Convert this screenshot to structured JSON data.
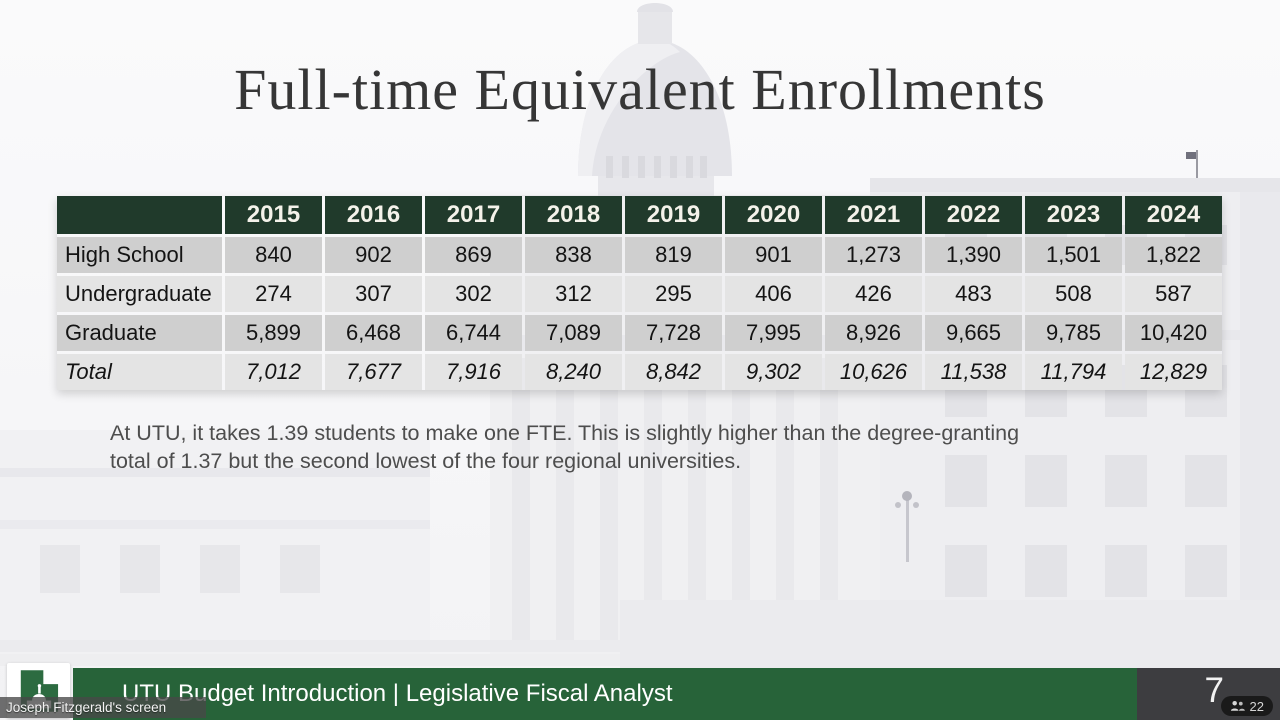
{
  "slide": {
    "title": "Full-time Equivalent Enrollments",
    "note_lines": [
      "At UTU, it takes 1.39 students to make one FTE. This is slightly higher than the degree-granting",
      "total of 1.37 but the second lowest of the four regional universities."
    ],
    "footer_text": "UTU Budget Introduction | Legislative Fiscal Analyst",
    "page_number": "7"
  },
  "table": {
    "years": [
      "2015",
      "2016",
      "2017",
      "2018",
      "2019",
      "2020",
      "2021",
      "2022",
      "2023",
      "2024"
    ],
    "rows": [
      {
        "label": "High School",
        "italic": false,
        "values": [
          "840",
          "902",
          "869",
          "838",
          "819",
          "901",
          "1,273",
          "1,390",
          "1,501",
          "1,822"
        ]
      },
      {
        "label": "Undergraduate",
        "italic": false,
        "values": [
          "274",
          "307",
          "302",
          "312",
          "295",
          "406",
          "426",
          "483",
          "508",
          "587"
        ]
      },
      {
        "label": "Graduate",
        "italic": false,
        "values": [
          "5,899",
          "6,468",
          "6,744",
          "7,089",
          "7,728",
          "7,995",
          "8,926",
          "9,665",
          "9,785",
          "10,420"
        ]
      },
      {
        "label": "Total",
        "italic": true,
        "values": [
          "7,012",
          "7,677",
          "7,916",
          "8,240",
          "8,842",
          "9,302",
          "10,626",
          "11,538",
          "11,794",
          "12,829"
        ]
      }
    ]
  },
  "meeting_overlay": {
    "screen_label": "Joseph Fitzgerald's screen",
    "participant_count": "22"
  },
  "colors": {
    "table_header_green": "#203a2b",
    "footer_green": "#276339",
    "footer_dark_panel": "#3d3d40",
    "row_gray_dark": "#cfcfcf",
    "row_gray_light": "#e4e4e4",
    "title_text": "#363636"
  }
}
